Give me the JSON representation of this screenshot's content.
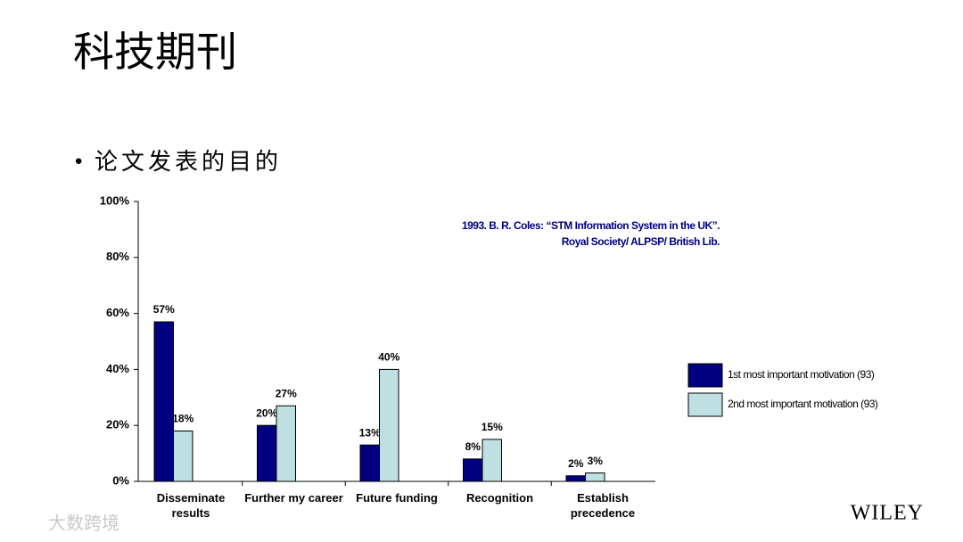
{
  "slide_title": "科技期刊",
  "bullet": "论文发表的目的",
  "logo": "WILEY",
  "watermark": "大数跨境",
  "chart_data": {
    "type": "bar",
    "annotations": [
      "1993. B. R. Coles: “STM Information System in the UK”.",
      "Royal Society/ ALPSP/ British Lib."
    ],
    "categories": [
      "Disseminate results",
      "Further my career",
      "Future funding",
      "Recognition",
      "Establish precedence"
    ],
    "series": [
      {
        "name": "1st most important motivation (93)",
        "color": "#000080",
        "values": [
          57,
          20,
          13,
          8,
          2
        ],
        "value_labels": [
          "57%",
          "20%",
          "13%",
          "8%",
          "2%"
        ]
      },
      {
        "name": "2nd most important motivation (93)",
        "color": "#bfe0e3",
        "values": [
          18,
          27,
          40,
          15,
          3
        ],
        "value_labels": [
          "18%",
          "27%",
          "40%",
          "15%",
          "3%"
        ]
      }
    ],
    "ylim": [
      0,
      100
    ],
    "yticks": [
      {
        "value": 0,
        "label": "0%"
      },
      {
        "value": 20,
        "label": "20%"
      },
      {
        "value": 40,
        "label": "40%"
      },
      {
        "value": 60,
        "label": "60%"
      },
      {
        "value": 80,
        "label": "80%"
      },
      {
        "value": 100,
        "label": "100%"
      }
    ],
    "grid": false,
    "legend": "right"
  }
}
